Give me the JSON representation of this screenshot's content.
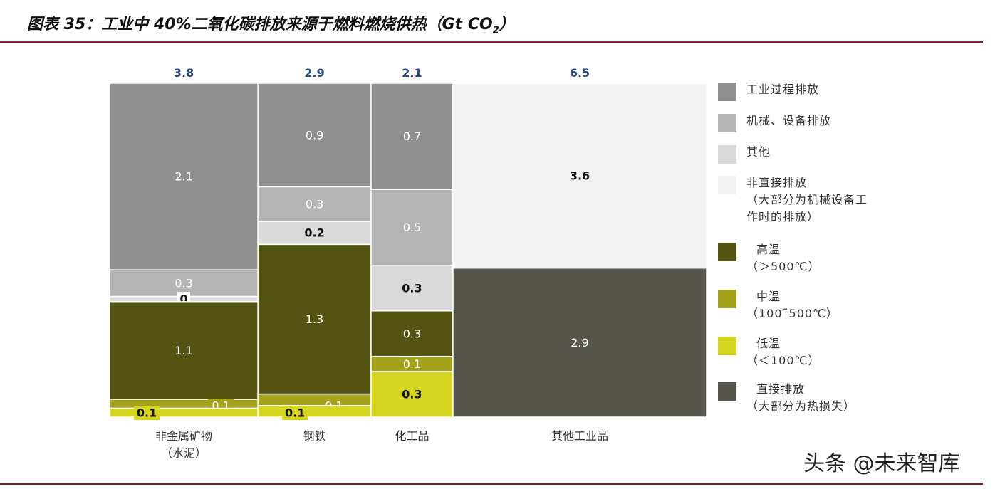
{
  "title": {
    "main": "图表 35：工业中 40%二氧化碳排放来源于燃料燃烧供热（Gt CO",
    "sub": "2",
    "close": "）"
  },
  "watermark": "头条 @未来智库",
  "colors": {
    "industrial_process": "#8f8f8f",
    "machinery": "#b4b4b5",
    "other": "#d9d9d9",
    "indirect": "#f2f2f2",
    "high_temp": "#545412",
    "mid_temp": "#a5a31b",
    "low_temp": "#d6d522",
    "direct": "#56554b"
  },
  "legend": [
    {
      "key": "industrial_process",
      "lines": [
        "工业过程排放"
      ]
    },
    {
      "key": "machinery",
      "lines": [
        "机械、设备排放"
      ]
    },
    {
      "key": "other",
      "lines": [
        "其他"
      ]
    },
    {
      "key": "indirect",
      "lines": [
        "非直接排放",
        "（大部分为机械设备工",
        "作时的排放）"
      ]
    },
    {
      "key": "high_temp",
      "lines": [
        "高温",
        "（＞500℃）"
      ]
    },
    {
      "key": "mid_temp",
      "lines": [
        "中温",
        "（100˜500℃）"
      ]
    },
    {
      "key": "low_temp",
      "lines": [
        "低温",
        "（＜100℃）"
      ]
    },
    {
      "key": "direct",
      "lines": [
        "直接排放",
        "（大部分为热损失）"
      ]
    }
  ],
  "chart_data": {
    "type": "bar",
    "subtype": "marimekko-stacked",
    "unit": "Gt CO2",
    "categories": [
      {
        "name": [
          "非金属矿物",
          "（水泥）"
        ],
        "total": "3.8",
        "total_value": 3.8,
        "segments": [
          {
            "key": "industrial_process",
            "value": 2.1,
            "label": "2.1"
          },
          {
            "key": "machinery",
            "value": 0.3,
            "label": "0.3"
          },
          {
            "key": "other",
            "value": 0.0,
            "label": "0"
          },
          {
            "key": "high_temp",
            "value": 1.1,
            "label": "1.1"
          },
          {
            "key": "mid_temp",
            "value": 0.1,
            "label": "0.1"
          },
          {
            "key": "low_temp",
            "value": 0.1,
            "label": "0.1"
          }
        ]
      },
      {
        "name": [
          "钢铁"
        ],
        "total": "2.9",
        "total_value": 2.9,
        "segments": [
          {
            "key": "industrial_process",
            "value": 0.9,
            "label": "0.9"
          },
          {
            "key": "machinery",
            "value": 0.3,
            "label": "0.3"
          },
          {
            "key": "other",
            "value": 0.2,
            "label": "0.2"
          },
          {
            "key": "high_temp",
            "value": 1.3,
            "label": "1.3"
          },
          {
            "key": "mid_temp",
            "value": 0.1,
            "label": "0.1"
          },
          {
            "key": "low_temp",
            "value": 0.1,
            "label": "0.1"
          }
        ]
      },
      {
        "name": [
          "化工品"
        ],
        "total": "2.1",
        "total_value": 2.1,
        "segments": [
          {
            "key": "industrial_process",
            "value": 0.7,
            "label": "0.7"
          },
          {
            "key": "machinery",
            "value": 0.5,
            "label": "0.5"
          },
          {
            "key": "other",
            "value": 0.3,
            "label": "0.3"
          },
          {
            "key": "high_temp",
            "value": 0.3,
            "label": "0.3"
          },
          {
            "key": "mid_temp",
            "value": 0.1,
            "label": "0.1"
          },
          {
            "key": "low_temp",
            "value": 0.3,
            "label": "0.3"
          }
        ]
      },
      {
        "name": [
          "其他工业品"
        ],
        "total": "6.5",
        "total_value": 6.5,
        "segments": [
          {
            "key": "indirect",
            "value": 3.6,
            "label": "3.6"
          },
          {
            "key": "direct",
            "value": 2.9,
            "label": "2.9"
          }
        ]
      }
    ]
  }
}
